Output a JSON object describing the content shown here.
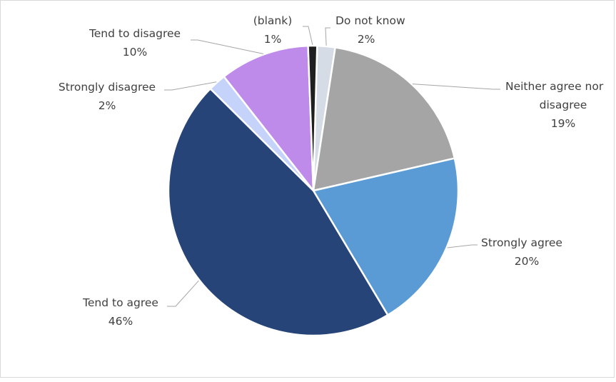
{
  "chart_data": {
    "type": "pie",
    "categories": [
      "Do not know",
      "Neither agree nor disagree",
      "Strongly agree",
      "Tend to agree",
      "Strongly disagree",
      "Tend to disagree",
      "(blank)"
    ],
    "values": [
      2,
      19,
      20,
      46,
      2,
      10,
      1
    ],
    "labels": [
      "2%",
      "19%",
      "20%",
      "46%",
      "2%",
      "10%",
      "1%"
    ],
    "colors": [
      "#d6dce5",
      "#a5a5a5",
      "#5b9bd5",
      "#264478",
      "#c5d3fb",
      "#bf8bea",
      "#1f1f1f"
    ],
    "start_angle_deg": 1.5,
    "legend": "none",
    "data_labels": "outside with leader lines"
  }
}
